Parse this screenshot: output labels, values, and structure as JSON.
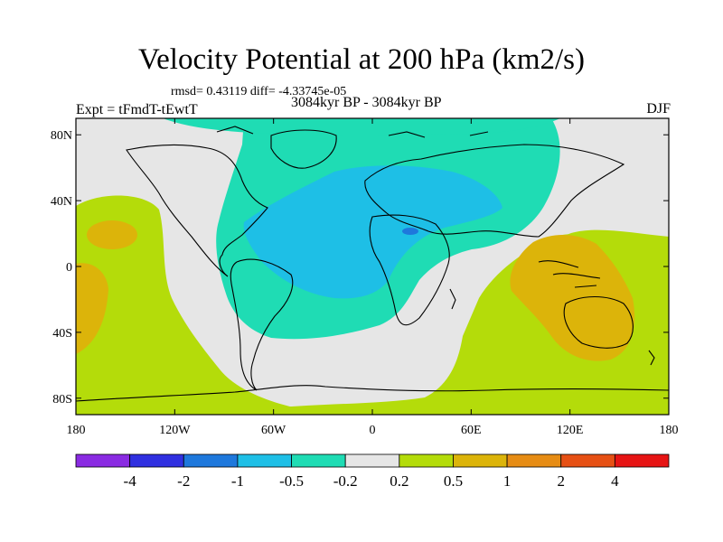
{
  "header": {
    "title": "Velocity Potential at 200 hPa (km2/s)",
    "stats": "rmsd= 0.43119 diff= -4.33745e-05",
    "experiment": "Expt = tFmdT-tEwtT",
    "period": "3084kyr BP - 3084kyr BP",
    "season": "DJF"
  },
  "axes": {
    "lon_ticks": [
      {
        "lon": -180,
        "label": "180"
      },
      {
        "lon": -120,
        "label": "120W"
      },
      {
        "lon": -60,
        "label": "60W"
      },
      {
        "lon": 0,
        "label": "0"
      },
      {
        "lon": 60,
        "label": "60E"
      },
      {
        "lon": 120,
        "label": "120E"
      },
      {
        "lon": 180,
        "label": "180"
      }
    ],
    "lat_ticks": [
      {
        "lat": 80,
        "label": "80N"
      },
      {
        "lat": 40,
        "label": "40N"
      },
      {
        "lat": 0,
        "label": "0"
      },
      {
        "lat": -40,
        "label": "40S"
      },
      {
        "lat": -80,
        "label": "80S"
      }
    ],
    "lon_range": [
      -180,
      180
    ],
    "lat_range": [
      -90,
      90
    ]
  },
  "colorbar": {
    "colors": [
      "#8a2be2",
      "#3030e0",
      "#1e78dc",
      "#1ebfe6",
      "#1fdcb4",
      "#e6e6e6",
      "#b4dc0a",
      "#dcb40a",
      "#e68c14",
      "#e65014",
      "#e61414"
    ],
    "labels": [
      "-4",
      "-2",
      "-1",
      "-0.5",
      "-0.2",
      "0.2",
      "0.5",
      "1",
      "2",
      "4"
    ]
  }
}
